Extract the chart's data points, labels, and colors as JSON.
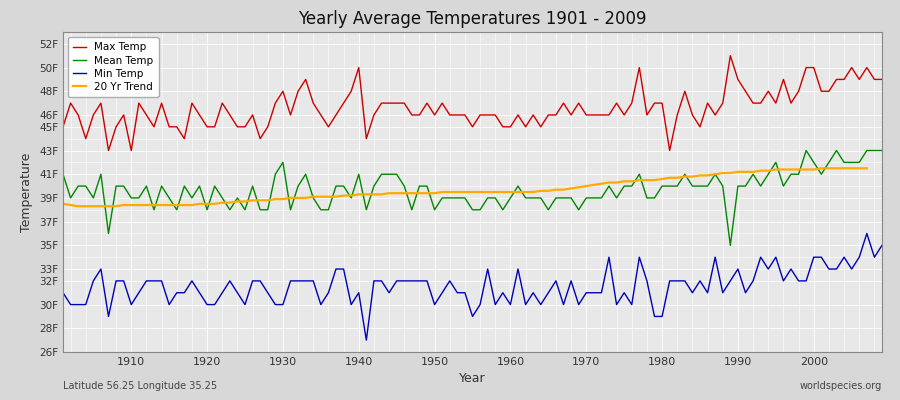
{
  "title": "Yearly Average Temperatures 1901 - 2009",
  "xlabel": "Year",
  "ylabel": "Temperature",
  "lat_lon_text": "Latitude 56.25 Longitude 35.25",
  "watermark": "worldspecies.org",
  "background_color": "#d8d8d8",
  "plot_bg_color": "#e8e8e8",
  "grid_color": "#ffffff",
  "ylim": [
    26,
    53
  ],
  "yticks": [
    26,
    28,
    30,
    32,
    33,
    35,
    37,
    39,
    41,
    43,
    45,
    46,
    48,
    50,
    52
  ],
  "ytick_labels": [
    "26F",
    "28F",
    "30F",
    "32F",
    "33F",
    "35F",
    "37F",
    "39F",
    "41F",
    "43F",
    "45F",
    "46F",
    "48F",
    "50F",
    "52F"
  ],
  "years": [
    1901,
    1902,
    1903,
    1904,
    1905,
    1906,
    1907,
    1908,
    1909,
    1910,
    1911,
    1912,
    1913,
    1914,
    1915,
    1916,
    1917,
    1918,
    1919,
    1920,
    1921,
    1922,
    1923,
    1924,
    1925,
    1926,
    1927,
    1928,
    1929,
    1930,
    1931,
    1932,
    1933,
    1934,
    1935,
    1936,
    1937,
    1938,
    1939,
    1940,
    1941,
    1942,
    1943,
    1944,
    1945,
    1946,
    1947,
    1948,
    1949,
    1950,
    1951,
    1952,
    1953,
    1954,
    1955,
    1956,
    1957,
    1958,
    1959,
    1960,
    1961,
    1962,
    1963,
    1964,
    1965,
    1966,
    1967,
    1968,
    1969,
    1970,
    1971,
    1972,
    1973,
    1974,
    1975,
    1976,
    1977,
    1978,
    1979,
    1980,
    1981,
    1982,
    1983,
    1984,
    1985,
    1986,
    1987,
    1988,
    1989,
    1990,
    1991,
    1992,
    1993,
    1994,
    1995,
    1996,
    1997,
    1998,
    1999,
    2000,
    2001,
    2002,
    2003,
    2004,
    2005,
    2006,
    2007,
    2008,
    2009
  ],
  "max_temp": [
    45,
    47,
    46,
    44,
    46,
    47,
    43,
    45,
    46,
    43,
    47,
    46,
    45,
    47,
    45,
    45,
    44,
    47,
    46,
    45,
    45,
    47,
    46,
    45,
    45,
    46,
    44,
    45,
    47,
    48,
    46,
    48,
    49,
    47,
    46,
    45,
    46,
    47,
    48,
    50,
    44,
    46,
    47,
    47,
    47,
    47,
    46,
    46,
    47,
    46,
    47,
    46,
    46,
    46,
    45,
    46,
    46,
    46,
    45,
    45,
    46,
    45,
    46,
    45,
    46,
    46,
    47,
    46,
    47,
    46,
    46,
    46,
    46,
    47,
    46,
    47,
    50,
    46,
    47,
    47,
    43,
    46,
    48,
    46,
    45,
    47,
    46,
    47,
    51,
    49,
    48,
    47,
    47,
    48,
    47,
    49,
    47,
    48,
    50,
    50,
    48,
    48,
    49,
    49,
    50,
    49,
    50,
    49,
    49
  ],
  "mean_temp": [
    41,
    39,
    40,
    40,
    39,
    41,
    36,
    40,
    40,
    39,
    39,
    40,
    38,
    40,
    39,
    38,
    40,
    39,
    40,
    38,
    40,
    39,
    38,
    39,
    38,
    40,
    38,
    38,
    41,
    42,
    38,
    40,
    41,
    39,
    38,
    38,
    40,
    40,
    39,
    41,
    38,
    40,
    41,
    41,
    41,
    40,
    38,
    40,
    40,
    38,
    39,
    39,
    39,
    39,
    38,
    38,
    39,
    39,
    38,
    39,
    40,
    39,
    39,
    39,
    38,
    39,
    39,
    39,
    38,
    39,
    39,
    39,
    40,
    39,
    40,
    40,
    41,
    39,
    39,
    40,
    40,
    40,
    41,
    40,
    40,
    40,
    41,
    40,
    35,
    40,
    40,
    41,
    40,
    41,
    42,
    40,
    41,
    41,
    43,
    42,
    41,
    42,
    43,
    42,
    42,
    42,
    43,
    43,
    43
  ],
  "min_temp": [
    31,
    30,
    30,
    30,
    32,
    33,
    29,
    32,
    32,
    30,
    31,
    32,
    32,
    32,
    30,
    31,
    31,
    32,
    31,
    30,
    30,
    31,
    32,
    31,
    30,
    32,
    32,
    31,
    30,
    30,
    32,
    32,
    32,
    32,
    30,
    31,
    33,
    33,
    30,
    31,
    27,
    32,
    32,
    31,
    32,
    32,
    32,
    32,
    32,
    30,
    31,
    32,
    31,
    31,
    29,
    30,
    33,
    30,
    31,
    30,
    33,
    30,
    31,
    30,
    31,
    32,
    30,
    32,
    30,
    31,
    31,
    31,
    34,
    30,
    31,
    30,
    34,
    32,
    29,
    29,
    32,
    32,
    32,
    31,
    32,
    31,
    34,
    31,
    32,
    33,
    31,
    32,
    34,
    33,
    34,
    32,
    33,
    32,
    32,
    34,
    34,
    33,
    33,
    34,
    33,
    34,
    36,
    34,
    35
  ],
  "trend": [
    38.5,
    38.4,
    38.3,
    38.3,
    38.3,
    38.3,
    38.3,
    38.3,
    38.4,
    38.4,
    38.4,
    38.4,
    38.4,
    38.4,
    38.4,
    38.4,
    38.4,
    38.4,
    38.5,
    38.5,
    38.5,
    38.6,
    38.6,
    38.7,
    38.7,
    38.8,
    38.8,
    38.8,
    38.9,
    38.9,
    39.0,
    39.0,
    39.0,
    39.1,
    39.1,
    39.1,
    39.1,
    39.2,
    39.2,
    39.3,
    39.3,
    39.3,
    39.3,
    39.4,
    39.4,
    39.4,
    39.4,
    39.4,
    39.4,
    39.4,
    39.5,
    39.5,
    39.5,
    39.5,
    39.5,
    39.5,
    39.5,
    39.5,
    39.5,
    39.5,
    39.5,
    39.5,
    39.5,
    39.6,
    39.6,
    39.7,
    39.7,
    39.8,
    39.9,
    40.0,
    40.1,
    40.2,
    40.3,
    40.3,
    40.4,
    40.4,
    40.5,
    40.5,
    40.5,
    40.6,
    40.7,
    40.7,
    40.8,
    40.8,
    40.9,
    40.9,
    41.0,
    41.1,
    41.1,
    41.2,
    41.2,
    41.2,
    41.3,
    41.3,
    41.4,
    41.4,
    41.4,
    41.4,
    41.4,
    41.4,
    41.5,
    41.5,
    41.5,
    41.5,
    41.5,
    41.5,
    41.5,
    null,
    null
  ],
  "line_colors": {
    "max": "#cc0000",
    "mean": "#008800",
    "min": "#0000bb",
    "trend": "#ffaa00"
  },
  "line_widths": {
    "max": 1.0,
    "mean": 1.0,
    "min": 1.0,
    "trend": 1.6
  },
  "legend_entries": [
    "Max Temp",
    "Mean Temp",
    "Min Temp",
    "20 Yr Trend"
  ],
  "legend_colors": [
    "#cc0000",
    "#008800",
    "#0000bb",
    "#ffaa00"
  ]
}
